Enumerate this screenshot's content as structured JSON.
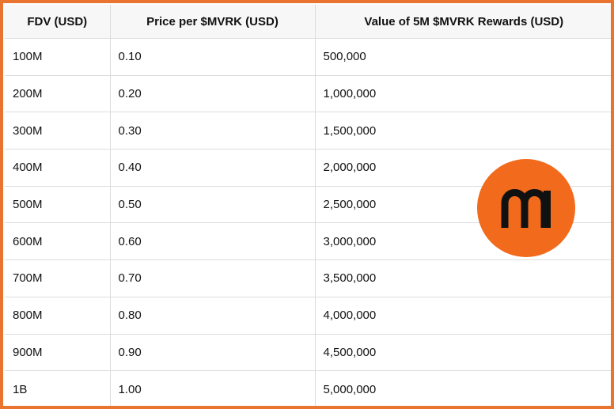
{
  "table": {
    "headers": [
      "FDV (USD)",
      "Price per $MVRK (USD)",
      "Value of 5M $MVRK Rewards (USD)"
    ],
    "rows": [
      [
        "100M",
        "0.10",
        "500,000"
      ],
      [
        "200M",
        "0.20",
        "1,000,000"
      ],
      [
        "300M",
        "0.30",
        "1,500,000"
      ],
      [
        "400M",
        "0.40",
        "2,000,000"
      ],
      [
        "500M",
        "0.50",
        "2,500,000"
      ],
      [
        "600M",
        "0.60",
        "3,000,000"
      ],
      [
        "700M",
        "0.70",
        "3,500,000"
      ],
      [
        "800M",
        "0.80",
        "4,000,000"
      ],
      [
        "900M",
        "0.90",
        "4,500,000"
      ],
      [
        "1B",
        "1.00",
        "5,000,000"
      ]
    ]
  },
  "logo": {
    "icon": "maverick-m-logo-icon",
    "background_color": "#f26a1b",
    "glyph_color": "#111111"
  },
  "colors": {
    "frame_border": "#e8742f",
    "header_background": "#f7f7f8",
    "grid_line": "#dcdcdf"
  }
}
